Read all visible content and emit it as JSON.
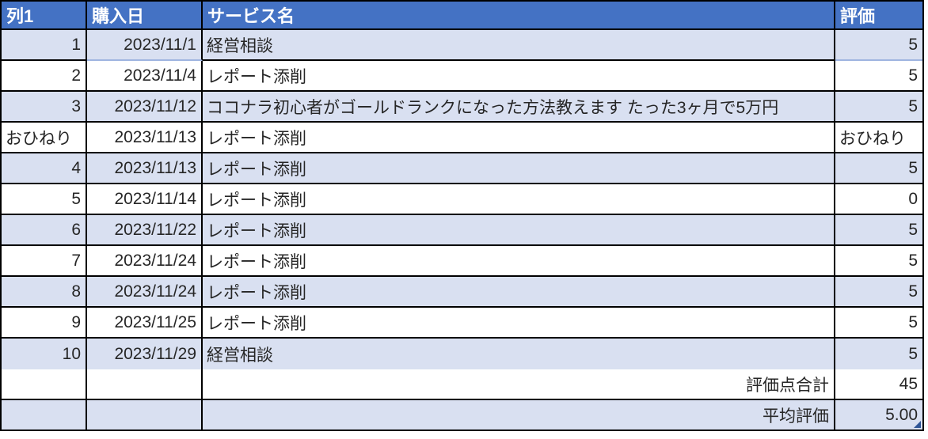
{
  "table": {
    "columns": [
      {
        "label": "列1"
      },
      {
        "label": "購入日"
      },
      {
        "label": "サービス名"
      },
      {
        "label": "評価"
      }
    ],
    "rows": [
      {
        "col1": "1",
        "date": "2023/11/1",
        "service": "経営相談",
        "rating": "5"
      },
      {
        "col1": "2",
        "date": "2023/11/4",
        "service": "レポート添削",
        "rating": "5"
      },
      {
        "col1": "3",
        "date": "2023/11/12",
        "service": "ココナラ初心者がゴールドランクになった方法教えます たった3ヶ月で5万円",
        "rating": "5"
      },
      {
        "col1": "おひねり",
        "date": "2023/11/13",
        "service": "レポート添削",
        "rating": "おひねり"
      },
      {
        "col1": "4",
        "date": "2023/11/13",
        "service": "レポート添削",
        "rating": "5"
      },
      {
        "col1": "5",
        "date": "2023/11/14",
        "service": "レポート添削",
        "rating": "0"
      },
      {
        "col1": "6",
        "date": "2023/11/22",
        "service": "レポート添削",
        "rating": "5"
      },
      {
        "col1": "7",
        "date": "2023/11/24",
        "service": "レポート添削",
        "rating": "5"
      },
      {
        "col1": "8",
        "date": "2023/11/24",
        "service": "レポート添削",
        "rating": "5"
      },
      {
        "col1": "9",
        "date": "2023/11/25",
        "service": "レポート添削",
        "rating": "5"
      },
      {
        "col1": "10",
        "date": "2023/11/29",
        "service": "経営相談",
        "rating": "5"
      }
    ],
    "summary": [
      {
        "label": "評価点合計",
        "value": "45"
      },
      {
        "label": "平均評価",
        "value": "5.00"
      }
    ],
    "colors": {
      "header_bg": "#4472C4",
      "header_text": "#FFFFFF",
      "band_bg": "#D9E0F1",
      "row_bg": "#FFFFFF",
      "border": "#000000",
      "text": "#262626",
      "handle": "#2F5597"
    }
  }
}
